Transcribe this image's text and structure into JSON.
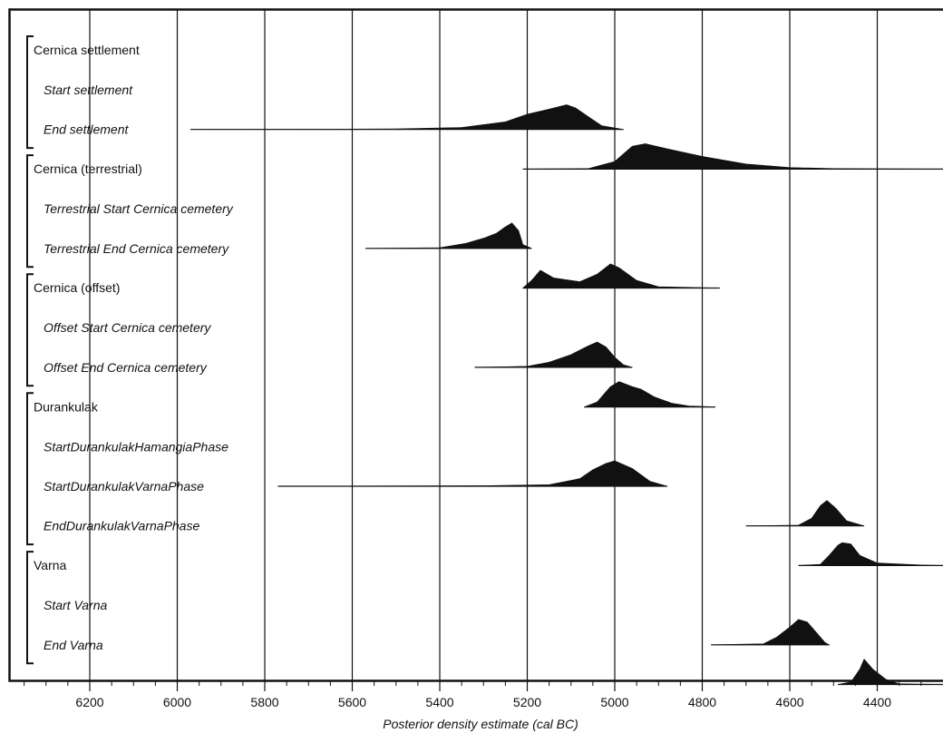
{
  "chart_data": {
    "type": "area",
    "title": "",
    "xlabel": "Posterior density estimate (cal BC)",
    "ylabel": "",
    "x_reversed": true,
    "xlim": [
      6380,
      4240
    ],
    "ticks": [
      6200,
      6000,
      5800,
      5600,
      5400,
      5200,
      5000,
      4800,
      4600,
      4400
    ],
    "grid": true,
    "groups": [
      {
        "name": "Cernica settlement",
        "items": [
          0,
          1
        ]
      },
      {
        "name": "Cernica (terrestrial)",
        "items": [
          2,
          3
        ]
      },
      {
        "name": "Cernica (offset)",
        "items": [
          4,
          5
        ]
      },
      {
        "name": "Durankulak",
        "items": [
          6,
          7,
          8
        ]
      },
      {
        "name": "Varna",
        "items": [
          9,
          10
        ]
      }
    ],
    "series": [
      {
        "name": "Start settlement",
        "range": [
          5970,
          4980
        ],
        "density": [
          [
            5970,
            0
          ],
          [
            5500,
            0.02
          ],
          [
            5350,
            0.08
          ],
          [
            5250,
            0.3
          ],
          [
            5200,
            0.6
          ],
          [
            5150,
            0.8
          ],
          [
            5110,
            0.97
          ],
          [
            5090,
            0.85
          ],
          [
            5060,
            0.5
          ],
          [
            5030,
            0.15
          ],
          [
            4980,
            0
          ]
        ]
      },
      {
        "name": "End settlement",
        "range": [
          5210,
          4240
        ],
        "density": [
          [
            5210,
            0
          ],
          [
            5060,
            0.02
          ],
          [
            5000,
            0.3
          ],
          [
            4960,
            0.9
          ],
          [
            4930,
            1.0
          ],
          [
            4880,
            0.8
          ],
          [
            4800,
            0.5
          ],
          [
            4700,
            0.2
          ],
          [
            4600,
            0.06
          ],
          [
            4500,
            0.02
          ],
          [
            4240,
            0
          ]
        ]
      },
      {
        "name": "Terrestrial Start Cernica cemetery",
        "range": [
          5570,
          5190
        ],
        "density": [
          [
            5570,
            0
          ],
          [
            5400,
            0.03
          ],
          [
            5340,
            0.2
          ],
          [
            5300,
            0.4
          ],
          [
            5270,
            0.6
          ],
          [
            5250,
            0.85
          ],
          [
            5235,
            1.0
          ],
          [
            5220,
            0.7
          ],
          [
            5210,
            0.15
          ],
          [
            5190,
            0
          ]
        ]
      },
      {
        "name": "Terrestrial End Cernica cemetery",
        "range": [
          5210,
          4760
        ],
        "density": [
          [
            5210,
            0
          ],
          [
            5190,
            0.3
          ],
          [
            5170,
            0.7
          ],
          [
            5140,
            0.4
          ],
          [
            5080,
            0.25
          ],
          [
            5040,
            0.55
          ],
          [
            5010,
            0.95
          ],
          [
            4990,
            0.8
          ],
          [
            4950,
            0.3
          ],
          [
            4900,
            0.05
          ],
          [
            4760,
            0
          ]
        ]
      },
      {
        "name": "Offset Start Cernica cemetery",
        "range": [
          5320,
          4960
        ],
        "density": [
          [
            5320,
            0
          ],
          [
            5200,
            0.04
          ],
          [
            5150,
            0.2
          ],
          [
            5100,
            0.5
          ],
          [
            5060,
            0.85
          ],
          [
            5040,
            1.0
          ],
          [
            5020,
            0.8
          ],
          [
            5000,
            0.4
          ],
          [
            4980,
            0.1
          ],
          [
            4960,
            0
          ]
        ]
      },
      {
        "name": "Offset End Cernica cemetery",
        "range": [
          5070,
          4770
        ],
        "density": [
          [
            5070,
            0
          ],
          [
            5040,
            0.2
          ],
          [
            5010,
            0.8
          ],
          [
            4990,
            1.0
          ],
          [
            4960,
            0.8
          ],
          [
            4940,
            0.7
          ],
          [
            4910,
            0.4
          ],
          [
            4870,
            0.15
          ],
          [
            4830,
            0.04
          ],
          [
            4770,
            0
          ]
        ]
      },
      {
        "name": "StartDurankulakHamangiaPhase",
        "range": [
          5770,
          4880
        ],
        "density": [
          [
            5770,
            0
          ],
          [
            5300,
            0.02
          ],
          [
            5150,
            0.06
          ],
          [
            5080,
            0.3
          ],
          [
            5050,
            0.65
          ],
          [
            5020,
            0.9
          ],
          [
            5000,
            1.0
          ],
          [
            4980,
            0.85
          ],
          [
            4960,
            0.7
          ],
          [
            4940,
            0.45
          ],
          [
            4920,
            0.2
          ],
          [
            4880,
            0
          ]
        ]
      },
      {
        "name": "StartDurankulakVarnaPhase",
        "range": [
          4700,
          4430
        ],
        "density": [
          [
            4700,
            0
          ],
          [
            4580,
            0.03
          ],
          [
            4550,
            0.3
          ],
          [
            4530,
            0.8
          ],
          [
            4515,
            1.0
          ],
          [
            4495,
            0.7
          ],
          [
            4470,
            0.2
          ],
          [
            4430,
            0
          ]
        ]
      },
      {
        "name": "EndDurankulakVarnaPhase",
        "range": [
          4580,
          4240
        ],
        "density": [
          [
            4580,
            0
          ],
          [
            4530,
            0.05
          ],
          [
            4510,
            0.4
          ],
          [
            4490,
            0.8
          ],
          [
            4480,
            0.9
          ],
          [
            4460,
            0.85
          ],
          [
            4440,
            0.4
          ],
          [
            4400,
            0.1
          ],
          [
            4300,
            0.02
          ],
          [
            4240,
            0
          ]
        ]
      },
      {
        "name": "Start Varna",
        "range": [
          4780,
          4510
        ],
        "density": [
          [
            4780,
            0
          ],
          [
            4660,
            0.04
          ],
          [
            4630,
            0.3
          ],
          [
            4600,
            0.7
          ],
          [
            4580,
            1.0
          ],
          [
            4560,
            0.9
          ],
          [
            4540,
            0.5
          ],
          [
            4520,
            0.1
          ],
          [
            4510,
            0
          ]
        ]
      },
      {
        "name": "End Varna",
        "range": [
          4490,
          4250
        ],
        "density": [
          [
            4490,
            0
          ],
          [
            4460,
            0.1
          ],
          [
            4440,
            0.6
          ],
          [
            4430,
            1.0
          ],
          [
            4410,
            0.6
          ],
          [
            4380,
            0.2
          ],
          [
            4350,
            0.03
          ],
          [
            4250,
            0
          ]
        ]
      }
    ]
  }
}
